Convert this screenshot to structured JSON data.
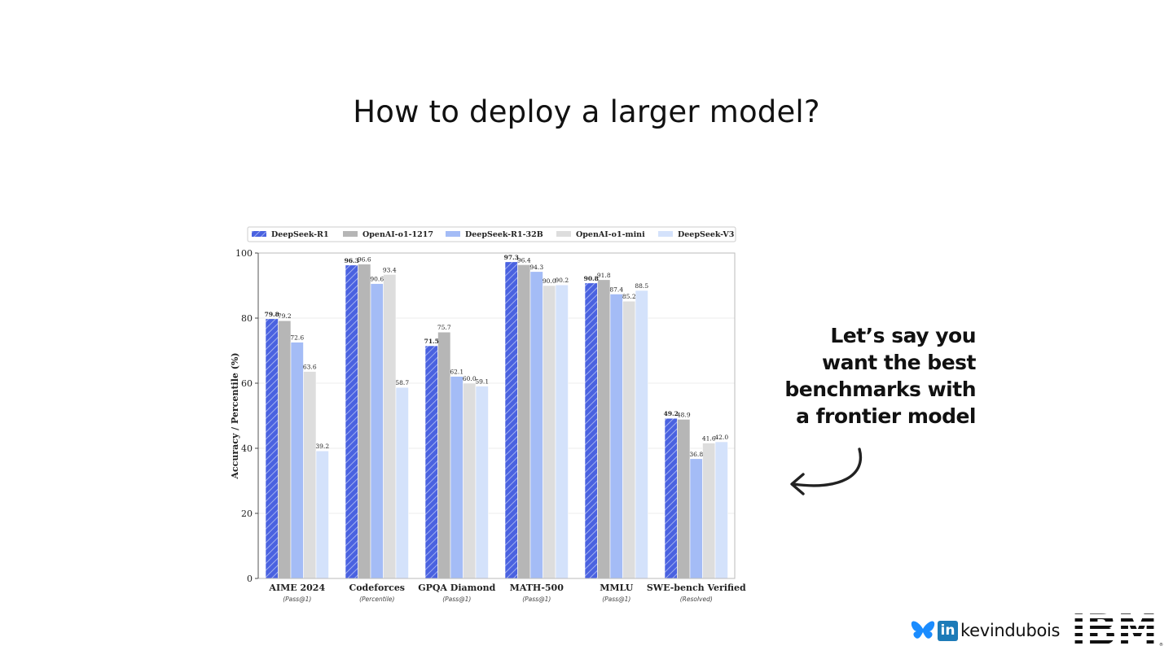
{
  "slide": {
    "title": "How to deploy a larger model?",
    "callout_lines": [
      "Let’s say you",
      "want the best",
      "benchmarks with",
      "a frontier model"
    ],
    "footer_handle": "kevindubois",
    "linkedin_text": "in",
    "logo_text": "IBM"
  },
  "chart_data": {
    "type": "bar",
    "title": "",
    "xlabel": "",
    "ylabel": "Accuracy / Percentile (%)",
    "ylim": [
      0,
      100
    ],
    "yticks": [
      0,
      20,
      40,
      60,
      80,
      100
    ],
    "grid": true,
    "legend_position": "top",
    "categories": [
      "AIME 2024",
      "Codeforces",
      "GPQA Diamond",
      "MATH-500",
      "MMLU",
      "SWE-bench Verified"
    ],
    "sublabels": [
      "(Pass@1)",
      "(Percentile)",
      "(Pass@1)",
      "(Pass@1)",
      "(Pass@1)",
      "(Resolved)"
    ],
    "series": [
      {
        "name": "DeepSeek-R1",
        "color": "#4a62e0",
        "hatched": true,
        "values": [
          79.8,
          96.3,
          71.5,
          97.3,
          90.8,
          49.2
        ]
      },
      {
        "name": "OpenAI-o1-1217",
        "color": "#b6b6b6",
        "hatched": false,
        "values": [
          79.2,
          96.6,
          75.7,
          96.4,
          91.8,
          48.9
        ]
      },
      {
        "name": "DeepSeek-R1-32B",
        "color": "#a4bcf6",
        "hatched": false,
        "values": [
          72.6,
          90.6,
          62.1,
          94.3,
          87.4,
          36.8
        ]
      },
      {
        "name": "OpenAI-o1-mini",
        "color": "#dddddd",
        "hatched": false,
        "values": [
          63.6,
          93.4,
          60.0,
          90.0,
          85.2,
          41.6
        ]
      },
      {
        "name": "DeepSeek-V3",
        "color": "#d4e2fb",
        "hatched": false,
        "values": [
          39.2,
          58.7,
          59.1,
          90.2,
          88.5,
          42.0
        ]
      }
    ],
    "value_labels": [
      [
        "79.8",
        "79.2",
        "72.6",
        "63.6",
        "39.2"
      ],
      [
        "96.3",
        "96.6",
        "90.6",
        "93.4",
        "58.7"
      ],
      [
        "71.5",
        "75.7",
        "62.1",
        "60.0",
        "59.1"
      ],
      [
        "97.3",
        "96.4",
        "94.3",
        "90.0",
        "90.2"
      ],
      [
        "90.8",
        "91.8",
        "87.4",
        "85.2",
        "88.5"
      ],
      [
        "49.2",
        "48.9",
        "36.8",
        "41.6",
        "42.0"
      ]
    ]
  }
}
